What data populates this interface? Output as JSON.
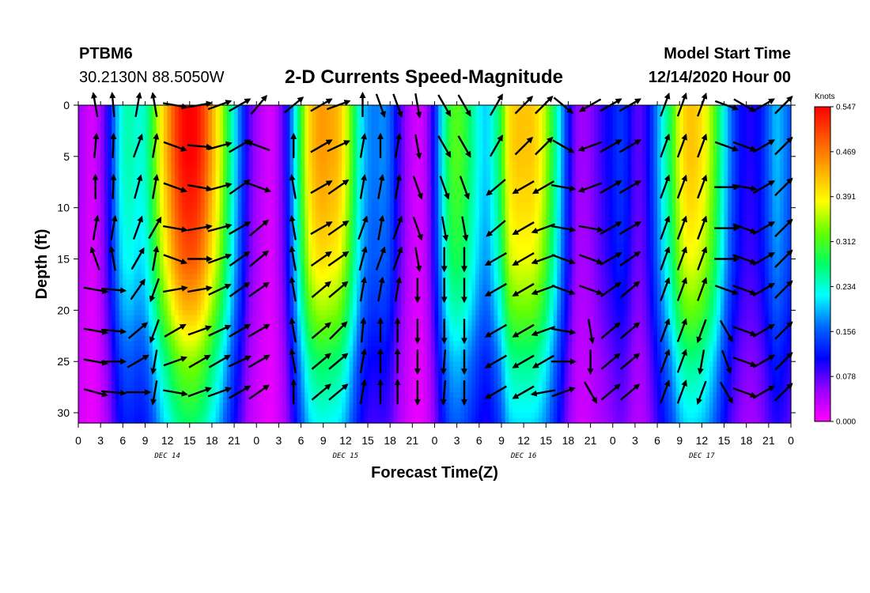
{
  "header": {
    "station_id": "PTBM6",
    "coords": "30.2130N 88.5050W",
    "title": "2-D Currents Speed-Magnitude",
    "start_label": "Model Start Time",
    "start_value": "12/14/2020 Hour 00"
  },
  "chart_data": {
    "type": "heatmap",
    "title": "2-D Currents Speed-Magnitude",
    "xlabel": "Forecast Time(Z)",
    "ylabel": "Depth (ft)",
    "x_tick_labels": [
      "0",
      "3",
      "6",
      "9",
      "12",
      "15",
      "18",
      "21",
      "0",
      "3",
      "6",
      "9",
      "12",
      "15",
      "18",
      "21",
      "0",
      "3",
      "6",
      "9",
      "12",
      "15",
      "18",
      "21",
      "0",
      "3",
      "6",
      "9",
      "12",
      "15",
      "18",
      "21",
      "0"
    ],
    "x_range_hours": [
      0,
      96
    ],
    "date_labels": [
      {
        "label": "DEC 14",
        "hour": 12
      },
      {
        "label": "DEC 15",
        "hour": 36
      },
      {
        "label": "DEC 16",
        "hour": 60
      },
      {
        "label": "DEC 17",
        "hour": 84
      }
    ],
    "y_ticks": [
      0,
      5,
      10,
      15,
      20,
      25,
      30
    ],
    "y_range": [
      0,
      31
    ],
    "y_inverted": true,
    "colorbar": {
      "unit": "Knots",
      "tick_labels": [
        "0.547",
        "0.469",
        "0.391",
        "0.312",
        "0.234",
        "0.156",
        "0.078",
        "0.000"
      ],
      "range": [
        0,
        0.547
      ],
      "colors": [
        "#ff00ff",
        "#9900ff",
        "#0000ff",
        "#0066ff",
        "#00ffff",
        "#00ff66",
        "#66ff00",
        "#ffff00",
        "#ffaa00",
        "#ff5500",
        "#ff0000"
      ]
    },
    "speed_profile": {
      "hours": [
        0,
        1,
        2,
        3,
        4,
        5,
        6,
        7,
        8,
        9,
        10,
        11,
        12,
        13,
        14,
        15,
        16,
        17,
        18,
        19,
        20,
        21,
        22,
        23,
        24,
        25,
        26,
        27,
        28,
        29,
        30,
        31,
        32,
        33,
        34,
        35,
        36,
        37,
        38,
        39,
        40,
        41,
        42,
        43,
        44,
        45,
        46,
        47,
        48,
        49,
        50,
        51,
        52,
        53,
        54,
        55,
        56,
        57,
        58,
        59,
        60,
        61,
        62,
        63,
        64,
        65,
        66,
        67,
        68,
        69,
        70,
        71,
        72,
        73,
        74,
        75,
        76,
        77,
        78,
        79,
        80,
        81,
        82,
        83,
        84,
        85,
        86,
        87,
        88,
        89,
        90,
        91,
        92,
        93,
        94,
        95,
        96
      ],
      "surface_knots": [
        0.05,
        0.03,
        0.02,
        0.05,
        0.1,
        0.18,
        0.24,
        0.25,
        0.23,
        0.24,
        0.3,
        0.38,
        0.44,
        0.5,
        0.54,
        0.55,
        0.54,
        0.5,
        0.44,
        0.38,
        0.3,
        0.22,
        0.15,
        0.08,
        0.05,
        0.03,
        0.02,
        0.05,
        0.1,
        0.2,
        0.3,
        0.4,
        0.44,
        0.45,
        0.44,
        0.43,
        0.38,
        0.3,
        0.22,
        0.18,
        0.17,
        0.18,
        0.16,
        0.1,
        0.06,
        0.03,
        0.02,
        0.05,
        0.12,
        0.22,
        0.3,
        0.32,
        0.3,
        0.26,
        0.22,
        0.2,
        0.24,
        0.3,
        0.4,
        0.42,
        0.42,
        0.42,
        0.4,
        0.35,
        0.28,
        0.2,
        0.12,
        0.06,
        0.05,
        0.06,
        0.08,
        0.1,
        0.12,
        0.14,
        0.12,
        0.08,
        0.08,
        0.12,
        0.18,
        0.24,
        0.3,
        0.38,
        0.42,
        0.42,
        0.4,
        0.36,
        0.3,
        0.22,
        0.16,
        0.12,
        0.1,
        0.1,
        0.12,
        0.16,
        0.2,
        0.18,
        0.15
      ],
      "depth_factor_ft": [
        0,
        5,
        10,
        15,
        20,
        25,
        31
      ],
      "depth_factor": [
        1.0,
        1.0,
        0.96,
        0.9,
        0.78,
        0.62,
        0.5
      ]
    },
    "arrow_columns_hours": [
      2.3,
      4.7,
      8.0,
      10.3,
      13.0,
      16.3,
      19.0,
      21.7,
      24.3,
      29.0,
      32.7,
      35.0,
      38.3,
      40.7,
      43.0,
      45.7,
      49.3,
      52.0,
      56.3,
      60.0,
      62.7,
      65.3,
      69.0,
      71.7,
      74.3,
      79.0,
      81.3,
      84.0,
      87.3,
      89.7,
      92.3,
      95.0
    ],
    "arrow_rows_ft": [
      0,
      4,
      8,
      12,
      15,
      18,
      22,
      25,
      28
    ],
    "arrow_angles_deg": [
      [
        100,
        85,
        90,
        80,
        110,
        -10,
        -10,
        -10,
        -15
      ],
      [
        95,
        88,
        88,
        80,
        100,
        -5,
        -5,
        0,
        -5
      ],
      [
        80,
        70,
        75,
        70,
        60,
        55,
        40,
        30,
        0
      ],
      [
        100,
        80,
        80,
        60,
        80,
        -110,
        -110,
        -100,
        -100
      ],
      [
        -10,
        -20,
        -20,
        -10,
        -20,
        10,
        30,
        20,
        -10
      ],
      [
        10,
        -5,
        -10,
        10,
        0,
        10,
        20,
        30,
        20
      ],
      [
        20,
        15,
        15,
        15,
        20,
        25,
        25,
        30,
        20
      ],
      [
        30,
        30,
        35,
        30,
        35,
        35,
        30,
        25,
        30
      ],
      [
        50,
        160,
        -20,
        40,
        40,
        35,
        30,
        30,
        35
      ],
      [
        40,
        90,
        100,
        100,
        100,
        100,
        100,
        100,
        90
      ],
      [
        30,
        30,
        30,
        30,
        35,
        40,
        40,
        40,
        40
      ],
      [
        20,
        25,
        35,
        35,
        35,
        40,
        45,
        40,
        40
      ],
      [
        90,
        80,
        80,
        70,
        75,
        80,
        85,
        80,
        80
      ],
      [
        -70,
        90,
        80,
        80,
        70,
        80,
        90,
        90,
        90
      ],
      [
        -70,
        80,
        80,
        70,
        70,
        80,
        90,
        90,
        90
      ],
      [
        -80,
        -80,
        -70,
        -70,
        -80,
        -90,
        -90,
        -90,
        -90
      ],
      [
        -60,
        -60,
        -70,
        -80,
        -90,
        -90,
        -90,
        -95,
        -95
      ],
      [
        -60,
        -60,
        -70,
        -80,
        -90,
        -90,
        -90,
        -90,
        -90
      ],
      [
        60,
        60,
        -140,
        -140,
        -150,
        -150,
        -150,
        -150,
        -150
      ],
      [
        45,
        45,
        -150,
        -150,
        -150,
        -150,
        -150,
        -150,
        -150
      ],
      [
        45,
        45,
        -150,
        -160,
        -160,
        -160,
        -160,
        -150,
        -170
      ],
      [
        -40,
        -30,
        -10,
        -10,
        -20,
        -20,
        -10,
        0,
        20
      ],
      [
        -150,
        -160,
        -160,
        -10,
        -20,
        -20,
        -80,
        -90,
        -60
      ],
      [
        30,
        30,
        30,
        30,
        30,
        35,
        40,
        40,
        40
      ],
      [
        30,
        30,
        30,
        30,
        35,
        40,
        40,
        40,
        40
      ],
      [
        70,
        70,
        70,
        70,
        70,
        70,
        70,
        70,
        70
      ],
      [
        70,
        70,
        70,
        70,
        70,
        70,
        70,
        70,
        70
      ],
      [
        70,
        70,
        70,
        70,
        70,
        70,
        -110,
        -100,
        -110
      ],
      [
        -20,
        -20,
        0,
        0,
        0,
        -20,
        -60,
        -70,
        -60
      ],
      [
        -30,
        -20,
        -10,
        -20,
        -20,
        -20,
        -20,
        -20,
        -20
      ],
      [
        30,
        30,
        30,
        30,
        30,
        30,
        30,
        30,
        30
      ],
      [
        45,
        45,
        45,
        45,
        45,
        45,
        45,
        45,
        45
      ]
    ]
  }
}
